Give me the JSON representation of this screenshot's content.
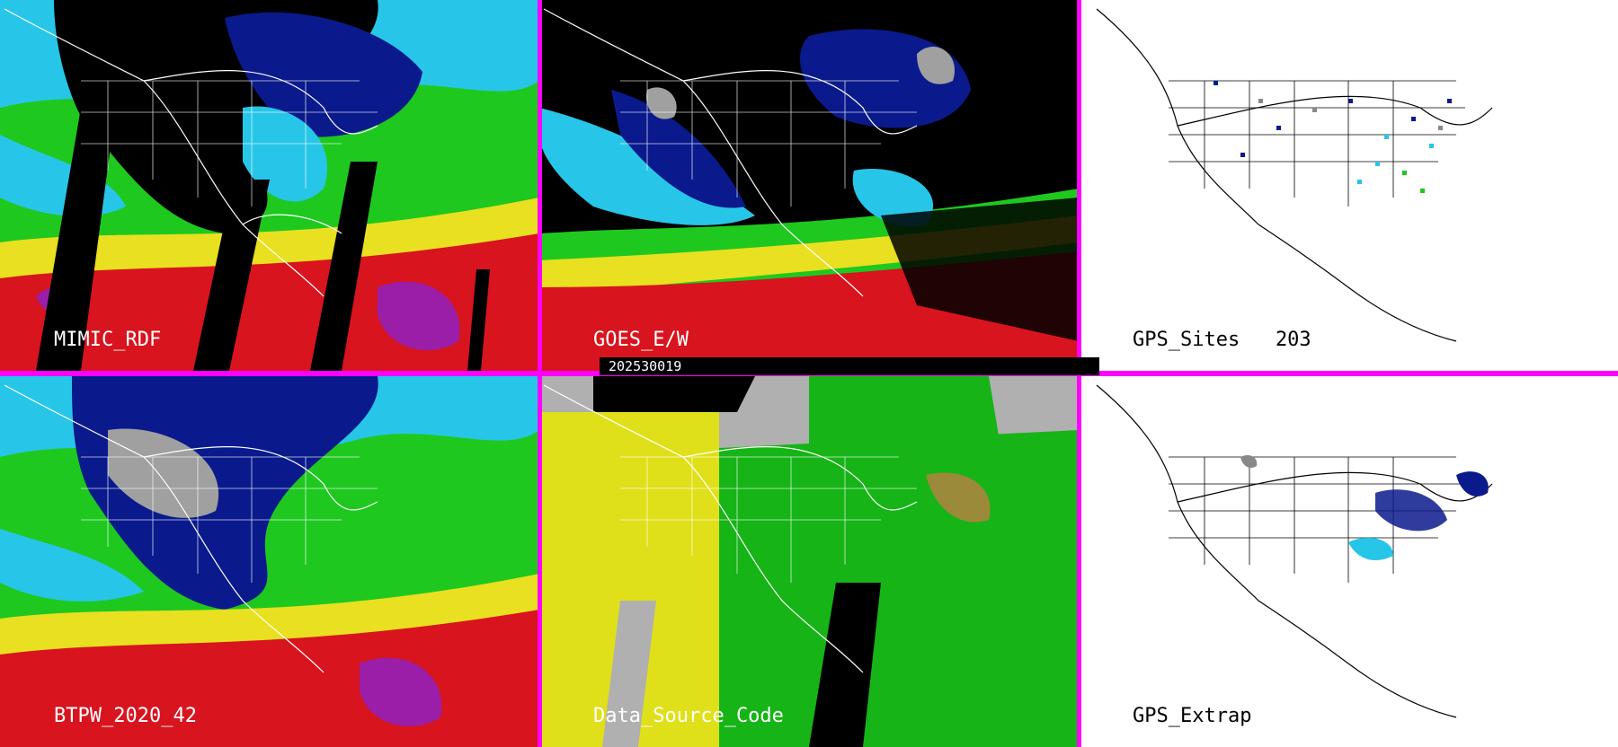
{
  "timestamp": "202530019",
  "panels": [
    {
      "id": "mimic",
      "label": "MIMIC_RDF",
      "style": "dark",
      "palette": [
        "#0a1a8c",
        "#1e5fd8",
        "#27c6e8",
        "#1fc81f",
        "#e8e020",
        "#d8141e",
        "#9b1ea8"
      ]
    },
    {
      "id": "goes",
      "label": "GOES_E/W",
      "style": "dark",
      "palette": [
        "#000000",
        "#0a1a8c",
        "#27c6e8",
        "#1fc81f",
        "#e8e020",
        "#d8141e"
      ]
    },
    {
      "id": "gps_sites",
      "label": "GPS_Sites   203",
      "style": "light"
    },
    {
      "id": "btpw",
      "label": "BTPW_2020_42",
      "style": "dark",
      "palette": [
        "#0a1a8c",
        "#1e5fd8",
        "#27c6e8",
        "#1fc81f",
        "#e8e020",
        "#d8141e",
        "#9b1ea8"
      ]
    },
    {
      "id": "source",
      "label": "Data_Source_Code",
      "style": "dark",
      "palette": [
        "#e0e01a",
        "#b0b0b0",
        "#16b416",
        "#000000",
        "#9a8a3a"
      ]
    },
    {
      "id": "gps_extrap",
      "label": "GPS_Extrap",
      "style": "light"
    }
  ],
  "colors": {
    "divider": "#ff00ff",
    "coast_dark": "#ffffff",
    "coast_light": "#000000"
  }
}
